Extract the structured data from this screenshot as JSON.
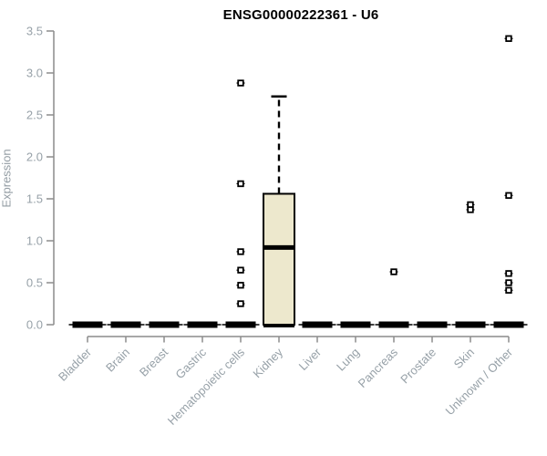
{
  "chart_data": {
    "type": "boxplot",
    "title": "ENSG00000222361 - U6",
    "xlabel": "",
    "ylabel": "Expression",
    "ylim": [
      0,
      3.5
    ],
    "yticks": [
      0.0,
      0.5,
      1.0,
      1.5,
      2.0,
      2.5,
      3.0,
      3.5
    ],
    "grid": false,
    "legend": "none",
    "categories": [
      "Bladder",
      "Brain",
      "Breast",
      "Gastric",
      "Hematopoietic cells",
      "Kidney",
      "Liver",
      "Lung",
      "Pancreas",
      "Prostate",
      "Skin",
      "Unknown / Other"
    ],
    "boxes": [
      {
        "category": "Bladder",
        "min": 0,
        "q1": 0,
        "median": 0,
        "q3": 0,
        "max": 0,
        "outliers": []
      },
      {
        "category": "Brain",
        "min": 0,
        "q1": 0,
        "median": 0,
        "q3": 0,
        "max": 0,
        "outliers": []
      },
      {
        "category": "Breast",
        "min": 0,
        "q1": 0,
        "median": 0,
        "q3": 0,
        "max": 0,
        "outliers": []
      },
      {
        "category": "Gastric",
        "min": 0,
        "q1": 0,
        "median": 0,
        "q3": 0,
        "max": 0,
        "outliers": []
      },
      {
        "category": "Hematopoietic cells",
        "min": 0,
        "q1": 0,
        "median": 0,
        "q3": 0,
        "max": 0,
        "outliers": [
          2.88,
          1.68,
          0.87,
          0.65,
          0.47,
          0.25
        ]
      },
      {
        "category": "Kidney",
        "min": 0,
        "q1": 0,
        "median": 0.92,
        "q3": 1.56,
        "max": 2.72,
        "outliers": []
      },
      {
        "category": "Liver",
        "min": 0,
        "q1": 0,
        "median": 0,
        "q3": 0,
        "max": 0,
        "outliers": []
      },
      {
        "category": "Lung",
        "min": 0,
        "q1": 0,
        "median": 0,
        "q3": 0,
        "max": 0,
        "outliers": []
      },
      {
        "category": "Pancreas",
        "min": 0,
        "q1": 0,
        "median": 0,
        "q3": 0,
        "max": 0,
        "outliers": [
          0.63
        ]
      },
      {
        "category": "Prostate",
        "min": 0,
        "q1": 0,
        "median": 0,
        "q3": 0,
        "max": 0,
        "outliers": []
      },
      {
        "category": "Skin",
        "min": 0,
        "q1": 0,
        "median": 0,
        "q3": 0,
        "max": 0,
        "outliers": [
          1.43,
          1.37
        ]
      },
      {
        "category": "Unknown / Other",
        "min": 0,
        "q1": 0,
        "median": 0,
        "q3": 0,
        "max": 0,
        "outliers": [
          3.41,
          1.54,
          0.61,
          0.5,
          0.41
        ]
      }
    ],
    "colors": {
      "box_fill": "#EDE8CD",
      "box_stroke": "#000000",
      "median": "#000000",
      "whisker": "#000000",
      "outlier": "#000000",
      "axis": "#8C8C8C",
      "tick_labels": "#97A1A8",
      "title": "#000000"
    }
  }
}
